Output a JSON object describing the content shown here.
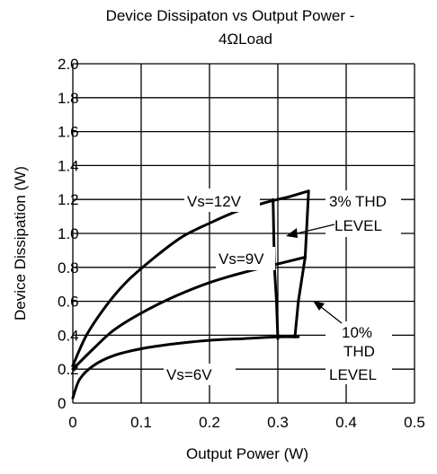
{
  "chart_data": {
    "type": "line",
    "title_line1": "Device Dissipaton vs Output Power -",
    "title_line2": "4ΩLoad",
    "xlabel": "Output Power (W)",
    "ylabel": "Device Dissipation (W)",
    "xlim": [
      0,
      0.5
    ],
    "ylim": [
      0,
      2.0
    ],
    "grid": true,
    "x_ticks": [
      "0",
      "0.1",
      "0.2",
      "0.3",
      "0.4",
      "0.5"
    ],
    "y_ticks": [
      "0",
      "0.2",
      "0.4",
      "0.6",
      "0.8",
      "1.0",
      "1.2",
      "1.4",
      "1.6",
      "1.8",
      "2.0"
    ],
    "series": [
      {
        "name": "Vs=12V",
        "x": [
          0,
          0.02,
          0.05,
          0.08,
          0.12,
          0.16,
          0.2,
          0.24,
          0.28,
          0.3,
          0.32,
          0.345
        ],
        "y": [
          0.22,
          0.4,
          0.58,
          0.72,
          0.86,
          0.98,
          1.06,
          1.13,
          1.18,
          1.2,
          1.22,
          1.25
        ]
      },
      {
        "name": "Vs=9V",
        "x": [
          0,
          0.03,
          0.06,
          0.1,
          0.15,
          0.2,
          0.25,
          0.3,
          0.34
        ],
        "y": [
          0.2,
          0.32,
          0.43,
          0.53,
          0.63,
          0.71,
          0.77,
          0.82,
          0.86
        ]
      },
      {
        "name": "Vs=6V",
        "x": [
          0,
          0.01,
          0.03,
          0.06,
          0.1,
          0.15,
          0.2,
          0.25,
          0.3,
          0.33
        ],
        "y": [
          0.03,
          0.14,
          0.22,
          0.28,
          0.32,
          0.35,
          0.37,
          0.38,
          0.39,
          0.39
        ]
      }
    ],
    "thd_boundaries": [
      {
        "name": "3% THD",
        "x": [
          0.293,
          0.295,
          0.298,
          0.3
        ],
        "y": [
          1.2,
          0.8,
          0.6,
          0.38
        ]
      },
      {
        "name": "10% THD",
        "x": [
          0.345,
          0.34,
          0.33,
          0.325
        ],
        "y": [
          1.25,
          0.86,
          0.6,
          0.39
        ]
      }
    ],
    "annotations": {
      "vs12": "Vs=12V",
      "vs9": "Vs=9V",
      "vs6": "Vs=6V",
      "thd3_line1": "3% THD",
      "thd3_line2": "LEVEL",
      "thd10_line1": "10%",
      "thd10_line2": "THD",
      "thd10_line3": "LEVEL"
    }
  }
}
